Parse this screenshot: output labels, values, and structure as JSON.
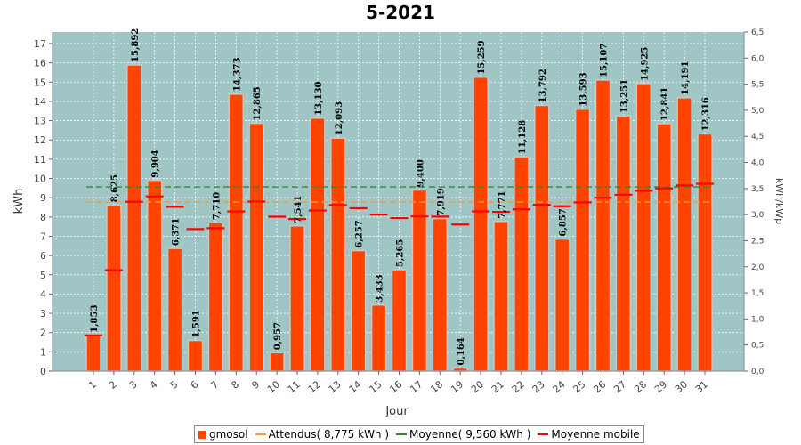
{
  "chart_data": {
    "type": "bar",
    "title": "5-2021",
    "xlabel": "Jour",
    "ylabel": "kWh",
    "y2label": "kWh/kWp",
    "ylim": [
      0,
      17.6
    ],
    "y2lim": [
      0,
      6.5
    ],
    "categories": [
      "1",
      "2",
      "3",
      "4",
      "5",
      "6",
      "7",
      "8",
      "9",
      "10",
      "11",
      "12",
      "13",
      "14",
      "15",
      "16",
      "17",
      "18",
      "19",
      "20",
      "21",
      "22",
      "23",
      "24",
      "25",
      "26",
      "27",
      "28",
      "29",
      "30",
      "31"
    ],
    "values": [
      1.853,
      8.625,
      15.892,
      9.904,
      6.371,
      1.591,
      7.71,
      14.373,
      12.865,
      0.957,
      7.541,
      13.13,
      12.093,
      6.257,
      3.433,
      5.265,
      9.4,
      7.919,
      0.164,
      15.259,
      7.771,
      11.128,
      13.792,
      6.857,
      13.593,
      15.107,
      13.251,
      14.925,
      12.841,
      14.191,
      12.316
    ],
    "value_labels": [
      "1,853",
      "8,625",
      "15,892",
      "9,904",
      "6,371",
      "1,591",
      "7,710",
      "14,373",
      "12,865",
      "0,957",
      "7,541",
      "13,130",
      "12,093",
      "6,257",
      "3,433",
      "5,265",
      "9,400",
      "7,919",
      "0,164",
      "15,259",
      "7,771",
      "11,128",
      "13,792",
      "6,857",
      "13,593",
      "15,107",
      "13,251",
      "14,925",
      "12,841",
      "14,191",
      "12,316"
    ],
    "moyenne_mobile": [
      1.853,
      5.239,
      8.79,
      9.069,
      8.529,
      7.373,
      7.42,
      8.289,
      8.797,
      8.013,
      7.9,
      8.335,
      8.625,
      8.456,
      8.121,
      7.943,
      8.028,
      8.022,
      7.609,
      8.292,
      8.267,
      8.397,
      8.632,
      8.558,
      8.76,
      8.999,
      9.156,
      9.361,
      9.481,
      9.637,
      9.723
    ],
    "attendus": 8.775,
    "moyenne": 9.56,
    "y_ticks": [
      "0",
      "1",
      "2",
      "3",
      "4",
      "5",
      "6",
      "7",
      "8",
      "9",
      "10",
      "11",
      "12",
      "13",
      "14",
      "15",
      "16",
      "17"
    ],
    "y2_ticks": [
      "0,0",
      "0,5",
      "1,0",
      "1,5",
      "2,0",
      "2,5",
      "3,0",
      "3,5",
      "4,0",
      "4,5",
      "5,0",
      "5,5",
      "6,0",
      "6,5"
    ],
    "legend": [
      {
        "label": "gmosol",
        "kind": "box",
        "color": "#FF4400"
      },
      {
        "label": "Attendus( 8,775 kWh )",
        "kind": "line",
        "color": "#F59A3A"
      },
      {
        "label": "Moyenne( 9,560 kWh )",
        "kind": "line",
        "color": "#2E8B2E"
      },
      {
        "label": "Moyenne mobile",
        "kind": "line",
        "color": "#FF0000"
      }
    ],
    "colors": {
      "plot_bg": "#9FC5C5",
      "bar": "#FF4400",
      "bar_edge": "#C8C8C8",
      "attendus": "#F59A3A",
      "moyenne": "#2E8B2E",
      "mobile": "#FF0000"
    },
    "grid": true,
    "legend_position": "bottom"
  }
}
